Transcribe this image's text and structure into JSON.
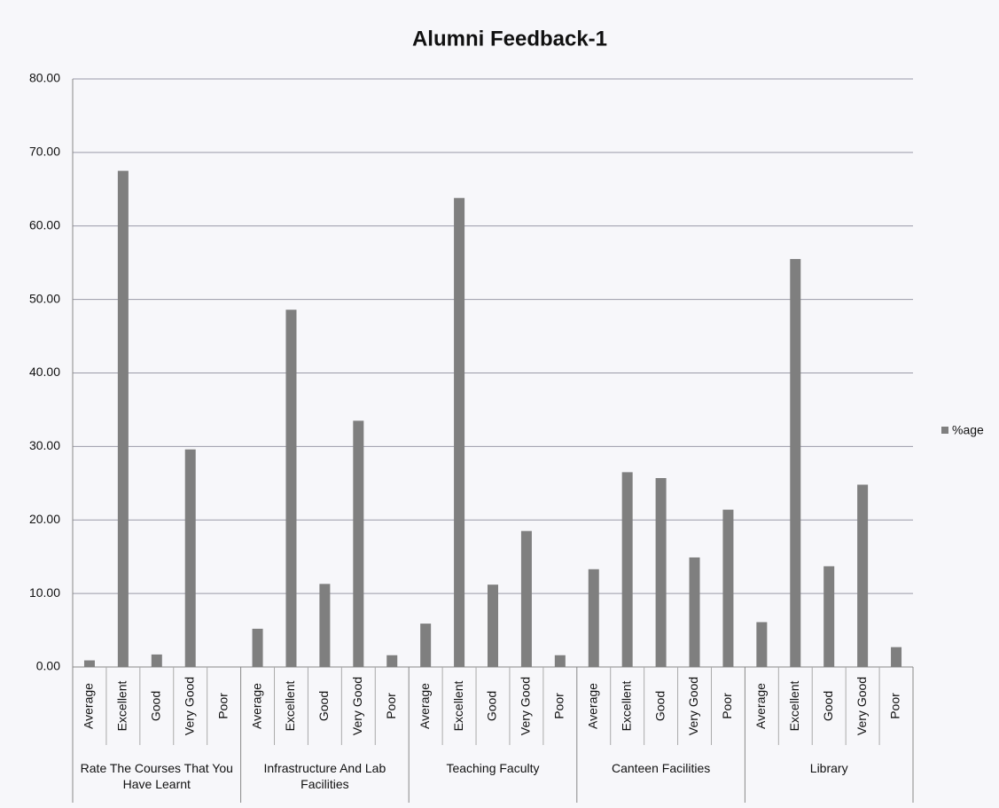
{
  "chart_data": {
    "type": "bar",
    "title": "Alumni  Feedback-1",
    "groups": [
      {
        "name": "Rate The Courses That You Have Learnt",
        "categories": [
          "Average",
          "Excellent",
          "Good",
          "Very Good",
          "Poor"
        ]
      },
      {
        "name": "Infrastructure And Lab Facilities",
        "categories": [
          "Average",
          "Excellent",
          "Good",
          "Very Good",
          "Poor"
        ]
      },
      {
        "name": "Teaching Faculty",
        "categories": [
          "Average",
          "Excellent",
          "Good",
          "Very Good",
          "Poor"
        ]
      },
      {
        "name": "Canteen Facilities",
        "categories": [
          "Average",
          "Excellent",
          "Good",
          "Very Good",
          "Poor"
        ]
      },
      {
        "name": "Library",
        "categories": [
          "Average",
          "Excellent",
          "Good",
          "Very Good",
          "Poor"
        ]
      }
    ],
    "series": [
      {
        "name": "%age",
        "color": "#7f7f7f",
        "values": [
          0.9,
          67.5,
          1.7,
          29.6,
          0,
          5.2,
          48.6,
          11.3,
          33.5,
          1.6,
          5.9,
          63.8,
          11.2,
          18.5,
          1.6,
          13.3,
          26.5,
          25.7,
          14.9,
          21.4,
          6.1,
          55.5,
          13.7,
          24.8,
          2.7
        ]
      }
    ],
    "ylim": [
      0,
      80
    ],
    "yticks": [
      {
        "value": 0,
        "label": "0.00"
      },
      {
        "value": 10,
        "label": "10.00"
      },
      {
        "value": 20,
        "label": "20.00"
      },
      {
        "value": 30,
        "label": "30.00"
      },
      {
        "value": 40,
        "label": "40.00"
      },
      {
        "value": 50,
        "label": "50.00"
      },
      {
        "value": 60,
        "label": "60.00"
      },
      {
        "value": 70,
        "label": "70.00"
      },
      {
        "value": 80,
        "label": "80.00"
      }
    ],
    "grid": true,
    "legend": "right"
  }
}
